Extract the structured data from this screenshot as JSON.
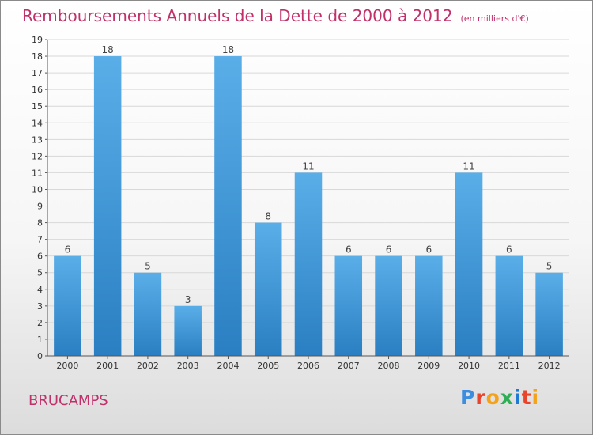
{
  "header": {
    "title": "Remboursements Annuels de la Dette de 2000 à 2012",
    "unit": "(en milliers d'€)"
  },
  "footer": {
    "commune": "BRUCAMPS",
    "logo_letters": [
      "P",
      "r",
      "o",
      "x",
      "i",
      "t",
      "i"
    ],
    "logo_colors": [
      "#3b8de0",
      "#e8442c",
      "#f5a21b",
      "#2fae55",
      "#1f7ad1",
      "#e8442c",
      "#f5a21b"
    ]
  },
  "colors": {
    "title": "#c0306a",
    "bar_light": "#5aaee8",
    "bar_dark": "#2a7fc2"
  },
  "chart_data": {
    "type": "bar",
    "title": "Remboursements Annuels de la Dette de 2000 à 2012",
    "subtitle": "(en milliers d'€)",
    "categories": [
      "2000",
      "2001",
      "2002",
      "2003",
      "2004",
      "2005",
      "2006",
      "2007",
      "2008",
      "2009",
      "2010",
      "2011",
      "2012"
    ],
    "values": [
      6,
      18,
      5,
      3,
      18,
      8,
      11,
      6,
      6,
      6,
      11,
      6,
      5
    ],
    "ylim": [
      0,
      19
    ],
    "yticks": [
      0,
      1,
      2,
      3,
      4,
      5,
      6,
      7,
      8,
      9,
      10,
      11,
      12,
      13,
      14,
      15,
      16,
      17,
      18,
      19
    ],
    "xlabel": "",
    "ylabel": "",
    "grid": true,
    "legend": "none"
  }
}
